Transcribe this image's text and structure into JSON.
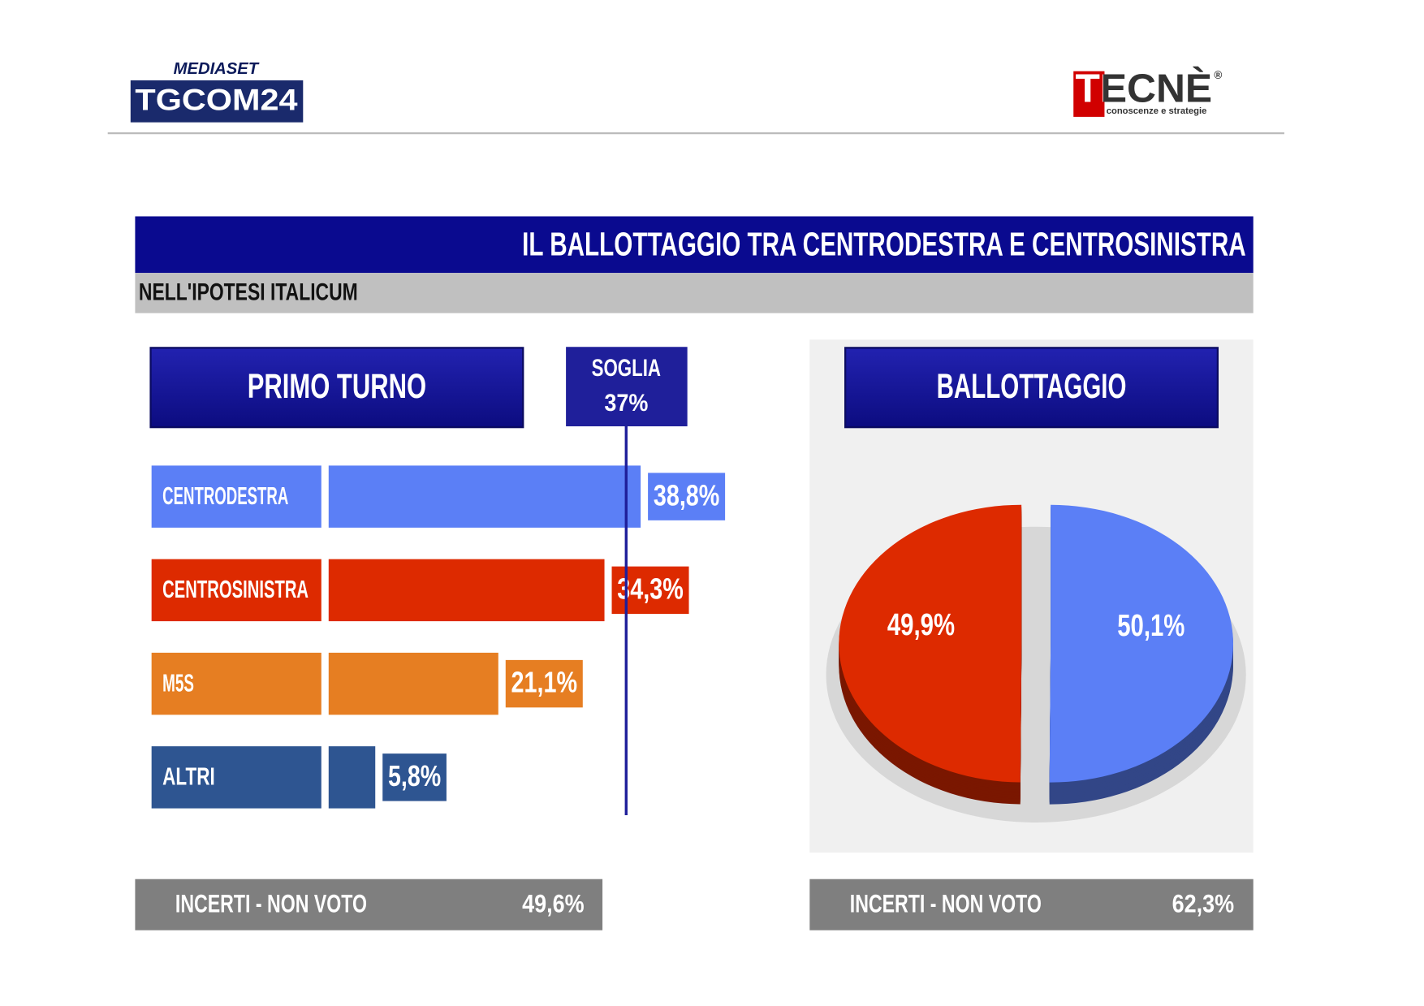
{
  "header": {
    "network": "MEDIASET",
    "channel": "TGCOM24",
    "pollster": "TECNÈ",
    "pollster_mark": "®",
    "pollster_tagline": "conoscenze e strategie"
  },
  "title": "IL BALLOTTAGGIO TRA CENTRODESTRA E CENTROSINISTRA",
  "subtitle": "NELL'IPOTESI ITALICUM",
  "chart_data": [
    {
      "type": "bar",
      "title": "PRIMO TURNO",
      "categories": [
        "CENTRODESTRA",
        "CENTROSINISTRA",
        "M5S",
        "ALTRI"
      ],
      "values": [
        38.8,
        34.3,
        21.1,
        5.8
      ],
      "value_labels": [
        "38,8%",
        "34,3%",
        "21,1%",
        "5,8%"
      ],
      "colors": [
        "#5b7ff6",
        "#dd2a00",
        "#e67e22",
        "#2e5591"
      ],
      "threshold": {
        "name": "SOGLIA",
        "value": 37,
        "label": "37%"
      },
      "footer": {
        "label": "INCERTI - NON VOTO",
        "value": "49,6%"
      }
    },
    {
      "type": "pie",
      "title": "BALLOTTAGGIO",
      "values": [
        50.1,
        49.9
      ],
      "value_labels": [
        "50,1%",
        "49,9%"
      ],
      "colors": [
        "#5b7ff6",
        "#dd2a00"
      ],
      "footer": {
        "label": "INCERTI - NON VOTO",
        "value": "62,3%"
      }
    }
  ]
}
